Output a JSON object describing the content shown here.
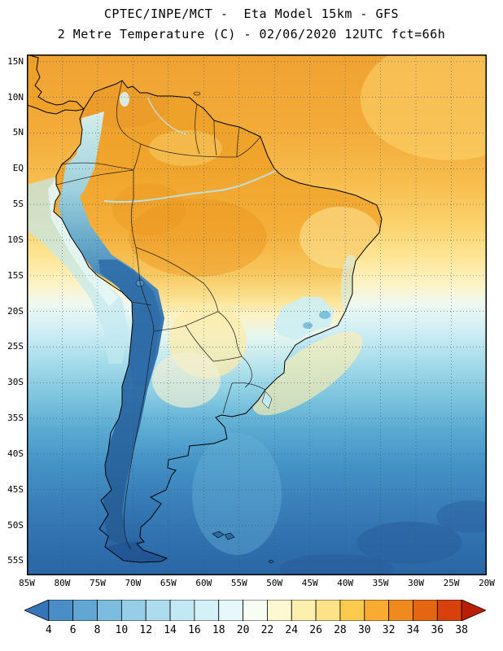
{
  "header": {
    "title_line1": "CPTEC/INPE/MCT -  Eta Model 15km - GFS",
    "title_line2": "2 Metre Temperature (C) - 02/06/2020 12UTC fct=66h"
  },
  "map": {
    "y_axis_labels": [
      "15N",
      "10N",
      "5N",
      "EQ",
      "5S",
      "10S",
      "15S",
      "20S",
      "25S",
      "30S",
      "35S",
      "40S",
      "45S",
      "50S",
      "55S"
    ],
    "x_axis_labels": [
      "85W",
      "80W",
      "75W",
      "70W",
      "65W",
      "60W",
      "55W",
      "50W",
      "45W",
      "40W",
      "35W",
      "30W",
      "25W",
      "20W"
    ]
  },
  "colorbar": {
    "tick_labels": [
      "4",
      "6",
      "8",
      "10",
      "12",
      "14",
      "16",
      "18",
      "20",
      "22",
      "24",
      "26",
      "28",
      "30",
      "32",
      "34",
      "36",
      "38"
    ],
    "colors": [
      "#3676b8",
      "#4a8ec8",
      "#62a6d4",
      "#7cbcdf",
      "#96cee8",
      "#aedcef",
      "#c2e8f4",
      "#d4f1f8",
      "#e6f8fa",
      "#f7fdf2",
      "#fdf8d2",
      "#fdefae",
      "#fde388",
      "#fcca4c",
      "#f8ab30",
      "#f08a1e",
      "#e56612",
      "#d8400c",
      "#b81f06"
    ]
  }
}
